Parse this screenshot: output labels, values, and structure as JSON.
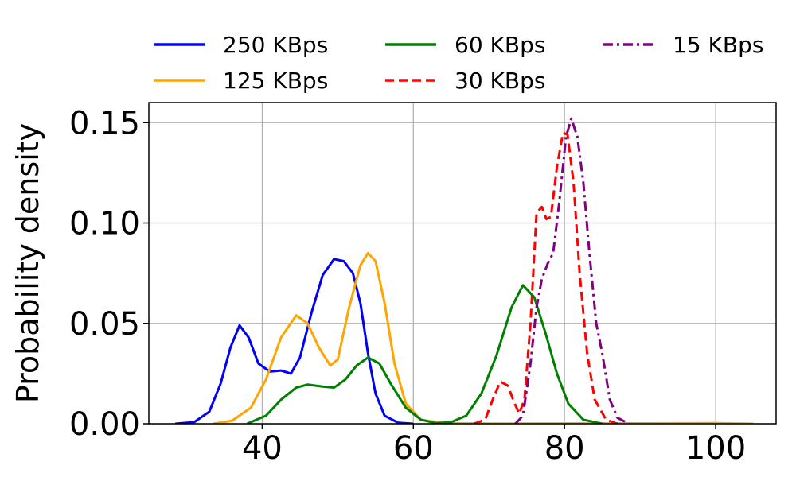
{
  "chart_data": {
    "type": "line",
    "title": "",
    "xlabel": "",
    "ylabel": "Probability density",
    "xlim": [
      25,
      108
    ],
    "ylim": [
      0.0,
      0.16
    ],
    "grid": true,
    "legend_placement": "top, outside plot, 3 columns",
    "xticks": [
      {
        "value": 40,
        "label": "40"
      },
      {
        "value": 60,
        "label": "60"
      },
      {
        "value": 80,
        "label": "80"
      },
      {
        "value": 100,
        "label": "100"
      }
    ],
    "yticks": [
      {
        "value": 0.0,
        "label": "0.00"
      },
      {
        "value": 0.05,
        "label": "0.05"
      },
      {
        "value": 0.1,
        "label": "0.10"
      },
      {
        "value": 0.15,
        "label": "0.15"
      }
    ],
    "series": [
      {
        "name": "250 KBps",
        "color": "#0000ff",
        "dash": "solid",
        "points": [
          [
            28.5,
            0.0
          ],
          [
            31,
            0.0008
          ],
          [
            33,
            0.006
          ],
          [
            34.5,
            0.02
          ],
          [
            35.8,
            0.038
          ],
          [
            37,
            0.049
          ],
          [
            38.2,
            0.043
          ],
          [
            39.5,
            0.03
          ],
          [
            41,
            0.026
          ],
          [
            42.5,
            0.0265
          ],
          [
            43.8,
            0.025
          ],
          [
            45,
            0.033
          ],
          [
            46.5,
            0.055
          ],
          [
            48,
            0.074
          ],
          [
            49.5,
            0.082
          ],
          [
            50.8,
            0.081
          ],
          [
            52,
            0.075
          ],
          [
            53,
            0.06
          ],
          [
            54,
            0.035
          ],
          [
            55,
            0.015
          ],
          [
            56.2,
            0.004
          ],
          [
            58,
            0.0005
          ],
          [
            60,
            0.0
          ]
        ]
      },
      {
        "name": "125 KBps",
        "color": "#ffa500",
        "dash": "solid",
        "points": [
          [
            33.5,
            0.0
          ],
          [
            36,
            0.0015
          ],
          [
            38.5,
            0.008
          ],
          [
            40.5,
            0.022
          ],
          [
            42.5,
            0.043
          ],
          [
            44.5,
            0.054
          ],
          [
            46,
            0.05
          ],
          [
            47.5,
            0.038
          ],
          [
            49,
            0.029
          ],
          [
            50,
            0.032
          ],
          [
            51.5,
            0.058
          ],
          [
            53,
            0.079
          ],
          [
            54,
            0.085
          ],
          [
            55,
            0.081
          ],
          [
            56.2,
            0.06
          ],
          [
            57.5,
            0.03
          ],
          [
            59,
            0.01
          ],
          [
            61,
            0.002
          ],
          [
            64,
            0.0003
          ],
          [
            70,
            0.0001
          ],
          [
            90,
            0.0002
          ],
          [
            100,
            0.0003
          ],
          [
            105,
            0.0
          ]
        ]
      },
      {
        "name": "60 KBps",
        "color": "#008000",
        "dash": "solid",
        "points": [
          [
            38,
            0.0
          ],
          [
            40.5,
            0.004
          ],
          [
            42.5,
            0.012
          ],
          [
            44.5,
            0.018
          ],
          [
            46,
            0.0195
          ],
          [
            48,
            0.0185
          ],
          [
            49.5,
            0.018
          ],
          [
            51,
            0.022
          ],
          [
            52.5,
            0.029
          ],
          [
            54,
            0.033
          ],
          [
            55.5,
            0.03
          ],
          [
            57,
            0.02
          ],
          [
            59,
            0.008
          ],
          [
            61,
            0.002
          ],
          [
            63,
            0.0003
          ],
          [
            65,
            0.0008
          ],
          [
            67,
            0.004
          ],
          [
            69,
            0.015
          ],
          [
            71,
            0.034
          ],
          [
            73,
            0.058
          ],
          [
            74.5,
            0.069
          ],
          [
            76,
            0.063
          ],
          [
            77.5,
            0.045
          ],
          [
            79,
            0.025
          ],
          [
            80.5,
            0.01
          ],
          [
            82.5,
            0.002
          ],
          [
            85,
            0.0
          ]
        ]
      },
      {
        "name": "30 KBps",
        "color": "#ff0000",
        "dash": "dashed",
        "points": [
          [
            68,
            0.0
          ],
          [
            69.5,
            0.002
          ],
          [
            70.5,
            0.012
          ],
          [
            71.5,
            0.021
          ],
          [
            72.5,
            0.019
          ],
          [
            73.3,
            0.011
          ],
          [
            74,
            0.005
          ],
          [
            74.7,
            0.012
          ],
          [
            75.5,
            0.05
          ],
          [
            76.3,
            0.105
          ],
          [
            77,
            0.108
          ],
          [
            77.6,
            0.102
          ],
          [
            78.2,
            0.103
          ],
          [
            79,
            0.128
          ],
          [
            79.8,
            0.145
          ],
          [
            80.4,
            0.144
          ],
          [
            81.2,
            0.12
          ],
          [
            82,
            0.075
          ],
          [
            83,
            0.035
          ],
          [
            84,
            0.012
          ],
          [
            85.5,
            0.002
          ],
          [
            87,
            0.0
          ]
        ]
      },
      {
        "name": "15 KBps",
        "color": "#800080",
        "dash": "dashdot",
        "points": [
          [
            73.5,
            0.0
          ],
          [
            74.5,
            0.004
          ],
          [
            75.5,
            0.03
          ],
          [
            76.3,
            0.058
          ],
          [
            77,
            0.072
          ],
          [
            77.8,
            0.08
          ],
          [
            78.5,
            0.085
          ],
          [
            79.3,
            0.11
          ],
          [
            80.2,
            0.143
          ],
          [
            80.9,
            0.152
          ],
          [
            81.7,
            0.143
          ],
          [
            82.5,
            0.12
          ],
          [
            83.3,
            0.085
          ],
          [
            84.2,
            0.05
          ],
          [
            85,
            0.035
          ],
          [
            86,
            0.012
          ],
          [
            87,
            0.003
          ],
          [
            88.5,
            0.0
          ]
        ]
      }
    ]
  }
}
